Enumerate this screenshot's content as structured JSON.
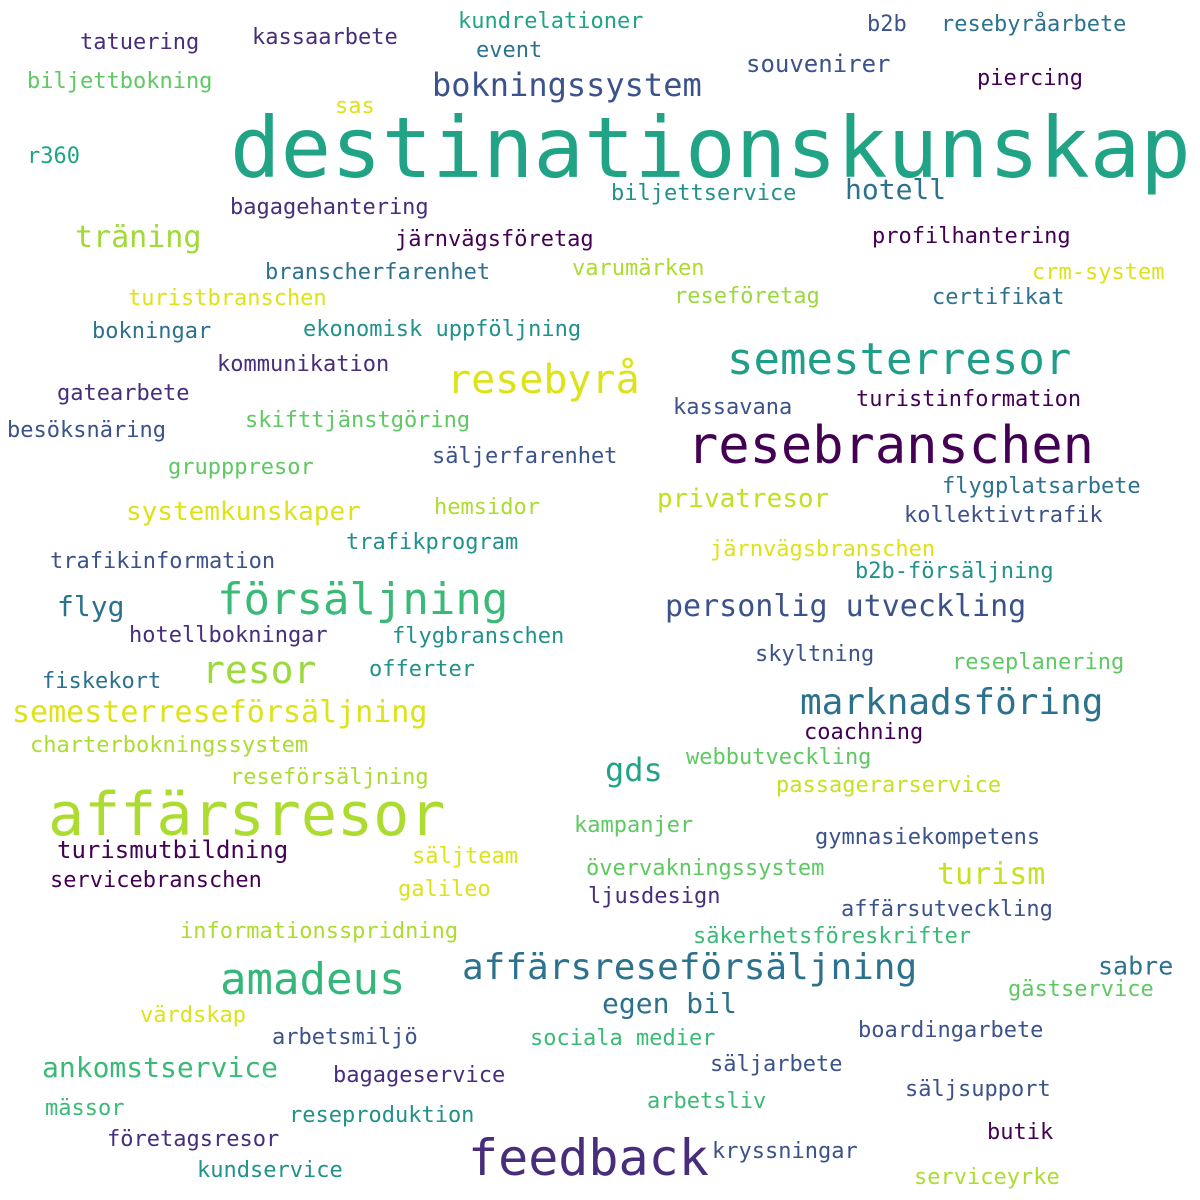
{
  "palette": {
    "purple": "#440154",
    "indigo": "#472d7b",
    "blue": "#3b528b",
    "steel": "#2c728e",
    "teal": "#21918c",
    "green": "#28ae80",
    "lime": "#5ec962",
    "yellowgreen": "#addc30",
    "yellow": "#dde318"
  },
  "words": [
    {
      "text": "destinationskunskap",
      "color": "#21a386"
    },
    {
      "text": "resebranschen",
      "color": "#440154"
    },
    {
      "text": "affärsresor",
      "color": "#addc30"
    },
    {
      "text": "feedback",
      "color": "#472d7b"
    },
    {
      "text": "semesterresor",
      "color": "#1f9e89"
    },
    {
      "text": "amadeus",
      "color": "#35b779"
    },
    {
      "text": "försäljning",
      "color": "#3aba76"
    },
    {
      "text": "resebyrå",
      "color": "#dde318"
    },
    {
      "text": "affärsreseförsäljning",
      "color": "#2c728e"
    },
    {
      "text": "resor",
      "color": "#9bd93c"
    },
    {
      "text": "marknadsföring",
      "color": "#2c728e"
    },
    {
      "text": "bokningssystem",
      "color": "#3b528b"
    },
    {
      "text": "semesterreseförsäljning",
      "color": "#dde318"
    },
    {
      "text": "personlig utveckling",
      "color": "#3b528b"
    },
    {
      "text": "träning",
      "color": "#a0da39"
    },
    {
      "text": "gds",
      "color": "#21a386"
    },
    {
      "text": "ankomstservice",
      "color": "#3aba76"
    },
    {
      "text": "egen bil",
      "color": "#2c728e"
    },
    {
      "text": "systemkunskaper",
      "color": "#dde318"
    },
    {
      "text": "privatresor",
      "color": "#c2df23"
    },
    {
      "text": "turism",
      "color": "#c8e020"
    },
    {
      "text": "hotell",
      "color": "#2c728e"
    },
    {
      "text": "flyg",
      "color": "#2c728e"
    },
    {
      "text": "sabre",
      "color": "#2c728e"
    },
    {
      "text": "souvenirer",
      "color": "#3b528b"
    },
    {
      "text": "turismutbildning",
      "color": "#440154"
    },
    {
      "text": "tatuering",
      "color": "#472d7b"
    },
    {
      "text": "kassaarbete",
      "color": "#472d7b"
    },
    {
      "text": "kundrelationer",
      "color": "#21a386"
    },
    {
      "text": "event",
      "color": "#2c728e"
    },
    {
      "text": "b2b",
      "color": "#3b528b"
    },
    {
      "text": "resebyråarbete",
      "color": "#2c728e"
    },
    {
      "text": "biljettbokning",
      "color": "#5ec962"
    },
    {
      "text": "piercing",
      "color": "#440154"
    },
    {
      "text": "sas",
      "color": "#dde318"
    },
    {
      "text": "r360",
      "color": "#21a386"
    },
    {
      "text": "biljettservice",
      "color": "#21918c"
    },
    {
      "text": "bagagehantering",
      "color": "#472d7b"
    },
    {
      "text": "järnvägsföretag",
      "color": "#440154"
    },
    {
      "text": "profilhantering",
      "color": "#440154"
    },
    {
      "text": "branscherfarenhet",
      "color": "#2c728e"
    },
    {
      "text": "varumärken",
      "color": "#addc30"
    },
    {
      "text": "crm-system",
      "color": "#dde318"
    },
    {
      "text": "turistbranschen",
      "color": "#dde318"
    },
    {
      "text": "reseföretag",
      "color": "#9bd93c"
    },
    {
      "text": "certifikat",
      "color": "#2c728e"
    },
    {
      "text": "bokningar",
      "color": "#2c728e"
    },
    {
      "text": "ekonomisk uppföljning",
      "color": "#21918c"
    },
    {
      "text": "kommunikation",
      "color": "#472d7b"
    },
    {
      "text": "gatearbete",
      "color": "#472d7b"
    },
    {
      "text": "kassavana",
      "color": "#3b528b"
    },
    {
      "text": "turistinformation",
      "color": "#440154"
    },
    {
      "text": "besöksnäring",
      "color": "#3b528b"
    },
    {
      "text": "skifttjänstgöring",
      "color": "#5ec962"
    },
    {
      "text": "grupppresor",
      "color": "#5ec962"
    },
    {
      "text": "säljerfarenhet",
      "color": "#3b528b"
    },
    {
      "text": "flygplatsarbete",
      "color": "#2c728e"
    },
    {
      "text": "hemsidor",
      "color": "#addc30"
    },
    {
      "text": "kollektivtrafik",
      "color": "#3b528b"
    },
    {
      "text": "trafikinformation",
      "color": "#3b528b"
    },
    {
      "text": "trafikprogram",
      "color": "#21918c"
    },
    {
      "text": "järnvägsbranschen",
      "color": "#dde318"
    },
    {
      "text": "b2b-försäljning",
      "color": "#21918c"
    },
    {
      "text": "hotellbokningar",
      "color": "#472d7b"
    },
    {
      "text": "flygbranschen",
      "color": "#21918c"
    },
    {
      "text": "skyltning",
      "color": "#3b528b"
    },
    {
      "text": "fiskekort",
      "color": "#2c728e"
    },
    {
      "text": "offerter",
      "color": "#21918c"
    },
    {
      "text": "reseplanering",
      "color": "#5ec962"
    },
    {
      "text": "coachning",
      "color": "#440154"
    },
    {
      "text": "charterbokningssystem",
      "color": "#addc30"
    },
    {
      "text": "webbutveckling",
      "color": "#5ec962"
    },
    {
      "text": "reseförsäljning",
      "color": "#addc30"
    },
    {
      "text": "passagerarservice",
      "color": "#c8e020"
    },
    {
      "text": "kampanjer",
      "color": "#5ec962"
    },
    {
      "text": "gymnasiekompetens",
      "color": "#3b528b"
    },
    {
      "text": "säljteam",
      "color": "#dde318"
    },
    {
      "text": "servicebranschen",
      "color": "#440154"
    },
    {
      "text": "övervakningssystem",
      "color": "#5ec962"
    },
    {
      "text": "galileo",
      "color": "#dde318"
    },
    {
      "text": "ljusdesign",
      "color": "#472d7b"
    },
    {
      "text": "affärsutveckling",
      "color": "#3b528b"
    },
    {
      "text": "informationsspridning",
      "color": "#addc30"
    },
    {
      "text": "säkerhetsföreskrifter",
      "color": "#3aba76"
    },
    {
      "text": "gästservice",
      "color": "#5ec962"
    },
    {
      "text": "värdskap",
      "color": "#dde318"
    },
    {
      "text": "arbetsmiljö",
      "color": "#3b528b"
    },
    {
      "text": "sociala medier",
      "color": "#3aba76"
    },
    {
      "text": "boardingarbete",
      "color": "#3b528b"
    },
    {
      "text": "säljarbete",
      "color": "#3b528b"
    },
    {
      "text": "bagageservice",
      "color": "#472d7b"
    },
    {
      "text": "mässor",
      "color": "#3aba76"
    },
    {
      "text": "säljsupport",
      "color": "#3b528b"
    },
    {
      "text": "reseproduktion",
      "color": "#21918c"
    },
    {
      "text": "arbetsliv",
      "color": "#3aba76"
    },
    {
      "text": "företagsresor",
      "color": "#472d7b"
    },
    {
      "text": "butik",
      "color": "#440154"
    },
    {
      "text": "kryssningar",
      "color": "#3b528b"
    },
    {
      "text": "kundservice",
      "color": "#21918c"
    },
    {
      "text": "serviceyrke",
      "color": "#addc30"
    }
  ]
}
